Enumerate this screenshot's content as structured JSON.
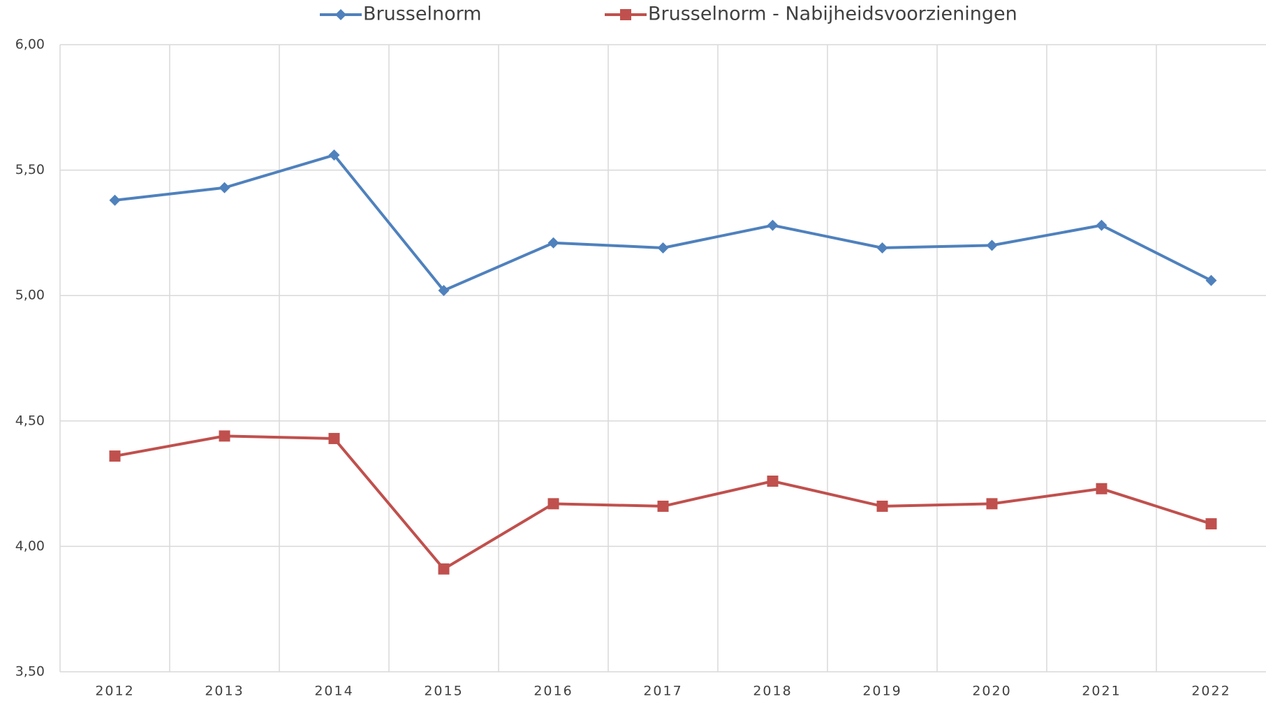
{
  "chart_data": {
    "type": "line",
    "categories": [
      "2012",
      "2013",
      "2014",
      "2015",
      "2016",
      "2017",
      "2018",
      "2019",
      "2020",
      "2021",
      "2022"
    ],
    "series": [
      {
        "name": "Brusselnorm",
        "color": "#4f81bd",
        "marker": "diamond",
        "values": [
          5.38,
          5.43,
          5.56,
          5.02,
          5.21,
          5.19,
          5.28,
          5.19,
          5.2,
          5.28,
          5.06
        ]
      },
      {
        "name": "Brusselnorm - Nabijheidsvoorzieningen",
        "color": "#c0504d",
        "marker": "square",
        "values": [
          4.36,
          4.44,
          4.43,
          3.91,
          4.17,
          4.16,
          4.26,
          4.16,
          4.17,
          4.23,
          4.09
        ]
      }
    ],
    "ylim": [
      3.5,
      6.0
    ],
    "yticks": [
      {
        "value": 3.5,
        "label": "3,50"
      },
      {
        "value": 4.0,
        "label": "4,00"
      },
      {
        "value": 4.5,
        "label": "4,50"
      },
      {
        "value": 5.0,
        "label": "5,00"
      },
      {
        "value": 5.5,
        "label": "5,50"
      },
      {
        "value": 6.0,
        "label": "6,00"
      }
    ],
    "grid": true,
    "legend": "top"
  }
}
